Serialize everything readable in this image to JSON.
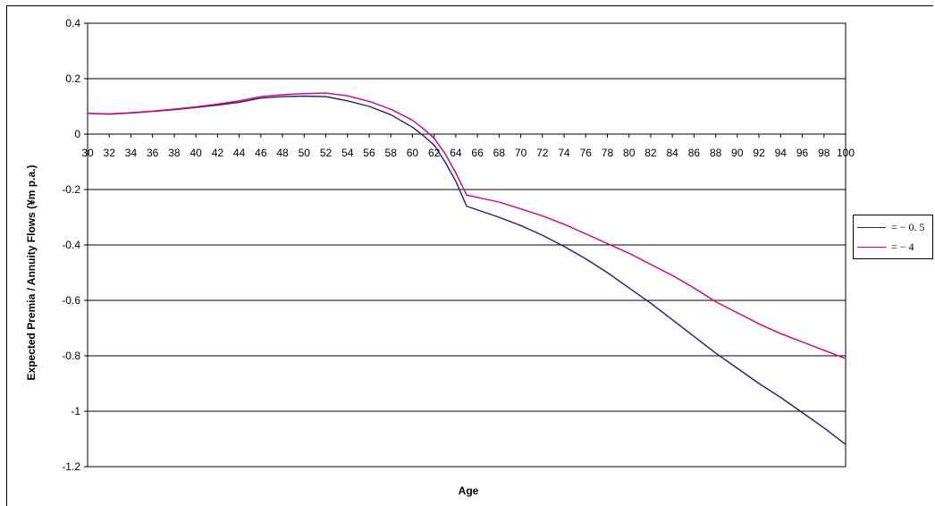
{
  "chart_data": {
    "type": "line",
    "xlabel": "Age",
    "ylabel": "Expected Premia / Annuity Flows (¥m p.a.)",
    "xlim": [
      30,
      100
    ],
    "ylim": [
      -1.2,
      0.4
    ],
    "xticks": [
      "30",
      "32",
      "34",
      "36",
      "38",
      "40",
      "42",
      "44",
      "46",
      "48",
      "50",
      "52",
      "54",
      "56",
      "58",
      "60",
      "62",
      "64",
      "66",
      "68",
      "70",
      "72",
      "74",
      "76",
      "78",
      "80",
      "82",
      "84",
      "86",
      "88",
      "90",
      "92",
      "94",
      "96",
      "98",
      "100"
    ],
    "yticks": [
      "0.4",
      "0.2",
      "0",
      "-0.2",
      "-0.4",
      "-0.6",
      "-0.8",
      "-1",
      "-1.2"
    ],
    "ytick_values": [
      0.4,
      0.2,
      0,
      -0.2,
      -0.4,
      -0.6,
      -0.8,
      -1,
      -1.2
    ],
    "grid": true,
    "legend_position": "right",
    "series": [
      {
        "name": "= − 0. 5",
        "color": "#1f1f7a",
        "x": [
          30,
          32,
          34,
          36,
          38,
          40,
          42,
          44,
          46,
          48,
          50,
          52,
          54,
          56,
          58,
          60,
          61,
          62,
          63,
          64,
          65,
          68,
          70,
          72,
          74,
          76,
          78,
          80,
          82,
          84,
          86,
          88,
          90,
          92,
          94,
          96,
          98,
          100
        ],
        "y": [
          0.075,
          0.072,
          0.076,
          0.082,
          0.088,
          0.096,
          0.105,
          0.115,
          0.13,
          0.135,
          0.137,
          0.135,
          0.12,
          0.1,
          0.07,
          0.025,
          -0.005,
          -0.04,
          -0.1,
          -0.17,
          -0.26,
          -0.3,
          -0.33,
          -0.365,
          -0.405,
          -0.45,
          -0.5,
          -0.555,
          -0.61,
          -0.67,
          -0.73,
          -0.79,
          -0.845,
          -0.9,
          -0.95,
          -1.005,
          -1.06,
          -1.12
        ]
      },
      {
        "name": "= − 4",
        "color": "#d6006e",
        "x": [
          30,
          32,
          34,
          36,
          38,
          40,
          42,
          44,
          46,
          48,
          50,
          52,
          54,
          56,
          58,
          60,
          61,
          62,
          63,
          64,
          65,
          68,
          70,
          72,
          74,
          76,
          78,
          80,
          82,
          84,
          86,
          88,
          90,
          92,
          94,
          96,
          98,
          100
        ],
        "y": [
          0.075,
          0.073,
          0.077,
          0.083,
          0.09,
          0.098,
          0.108,
          0.12,
          0.135,
          0.142,
          0.146,
          0.148,
          0.138,
          0.118,
          0.09,
          0.05,
          0.02,
          -0.015,
          -0.07,
          -0.14,
          -0.22,
          -0.245,
          -0.27,
          -0.295,
          -0.325,
          -0.36,
          -0.395,
          -0.43,
          -0.47,
          -0.51,
          -0.555,
          -0.605,
          -0.645,
          -0.685,
          -0.72,
          -0.75,
          -0.78,
          -0.81
        ]
      }
    ]
  }
}
